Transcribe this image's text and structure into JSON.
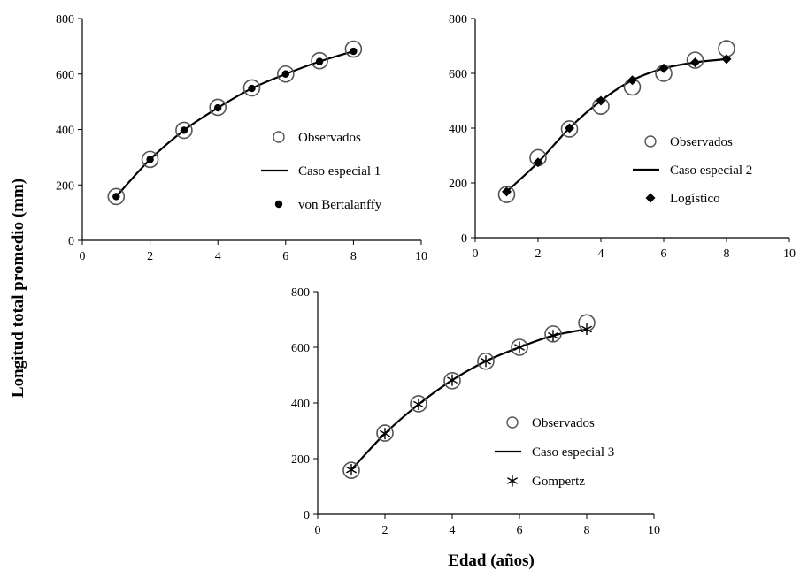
{
  "figure": {
    "ylabel": "Longitud total promedio  (mm)",
    "xlabel": "Edad (años)"
  },
  "chart_data": [
    {
      "type": "scatter",
      "xlim": [
        0,
        10
      ],
      "ylim": [
        0,
        800
      ],
      "xticks": [
        "0",
        "2",
        "4",
        "6",
        "8",
        "10"
      ],
      "yticks": [
        "0",
        "200",
        "400",
        "600",
        "800"
      ],
      "legend_position": "center-right",
      "series": [
        {
          "name": "Observados",
          "marker": "open-circle",
          "x": [
            1,
            2,
            3,
            4,
            5,
            6,
            7,
            8
          ],
          "y": [
            158,
            292,
            397,
            480,
            550,
            600,
            648,
            690
          ]
        },
        {
          "name": "Caso especial  1",
          "marker": "line",
          "x": [
            1,
            2,
            3,
            4,
            5,
            6,
            7,
            8
          ],
          "y": [
            158,
            292,
            397,
            478,
            548,
            600,
            645,
            682
          ]
        },
        {
          "name": "von Bertalanffy",
          "marker": "filled-circle",
          "x": [
            1,
            2,
            3,
            4,
            5,
            6,
            7,
            8
          ],
          "y": [
            158,
            292,
            397,
            478,
            548,
            600,
            645,
            682
          ]
        }
      ]
    },
    {
      "type": "scatter",
      "xlim": [
        0,
        10
      ],
      "ylim": [
        0,
        800
      ],
      "xticks": [
        "0",
        "2",
        "4",
        "6",
        "8",
        "10"
      ],
      "yticks": [
        "0",
        "200",
        "400",
        "600",
        "800"
      ],
      "legend_position": "center-right",
      "series": [
        {
          "name": "Observados",
          "marker": "open-circle",
          "x": [
            1,
            2,
            3,
            4,
            5,
            6,
            7,
            8
          ],
          "y": [
            158,
            292,
            397,
            480,
            550,
            600,
            648,
            690
          ]
        },
        {
          "name": "Caso especial  2",
          "marker": "line",
          "x": [
            1,
            2,
            3,
            4,
            5,
            6,
            7,
            8
          ],
          "y": [
            168,
            275,
            400,
            500,
            575,
            618,
            640,
            652
          ]
        },
        {
          "name": "Logístico",
          "marker": "filled-diamond",
          "x": [
            1,
            2,
            3,
            4,
            5,
            6,
            7,
            8
          ],
          "y": [
            168,
            275,
            400,
            500,
            575,
            618,
            640,
            652
          ]
        }
      ]
    },
    {
      "type": "scatter",
      "xlim": [
        0,
        10
      ],
      "ylim": [
        0,
        800
      ],
      "xticks": [
        "0",
        "2",
        "4",
        "6",
        "8",
        "10"
      ],
      "yticks": [
        "0",
        "200",
        "400",
        "600",
        "800"
      ],
      "legend_position": "center-right",
      "series": [
        {
          "name": "Observados",
          "marker": "open-circle",
          "x": [
            1,
            2,
            3,
            4,
            5,
            6,
            7,
            8
          ],
          "y": [
            158,
            292,
            397,
            480,
            550,
            600,
            648,
            688
          ]
        },
        {
          "name": "Caso especial  3",
          "marker": "line",
          "x": [
            1,
            2,
            3,
            4,
            5,
            6,
            7,
            8
          ],
          "y": [
            160,
            290,
            395,
            482,
            550,
            600,
            642,
            665
          ]
        },
        {
          "name": "Gompertz",
          "marker": "asterisk",
          "x": [
            1,
            2,
            3,
            4,
            5,
            6,
            7,
            8
          ],
          "y": [
            160,
            290,
            395,
            482,
            550,
            600,
            642,
            665
          ]
        }
      ]
    }
  ]
}
